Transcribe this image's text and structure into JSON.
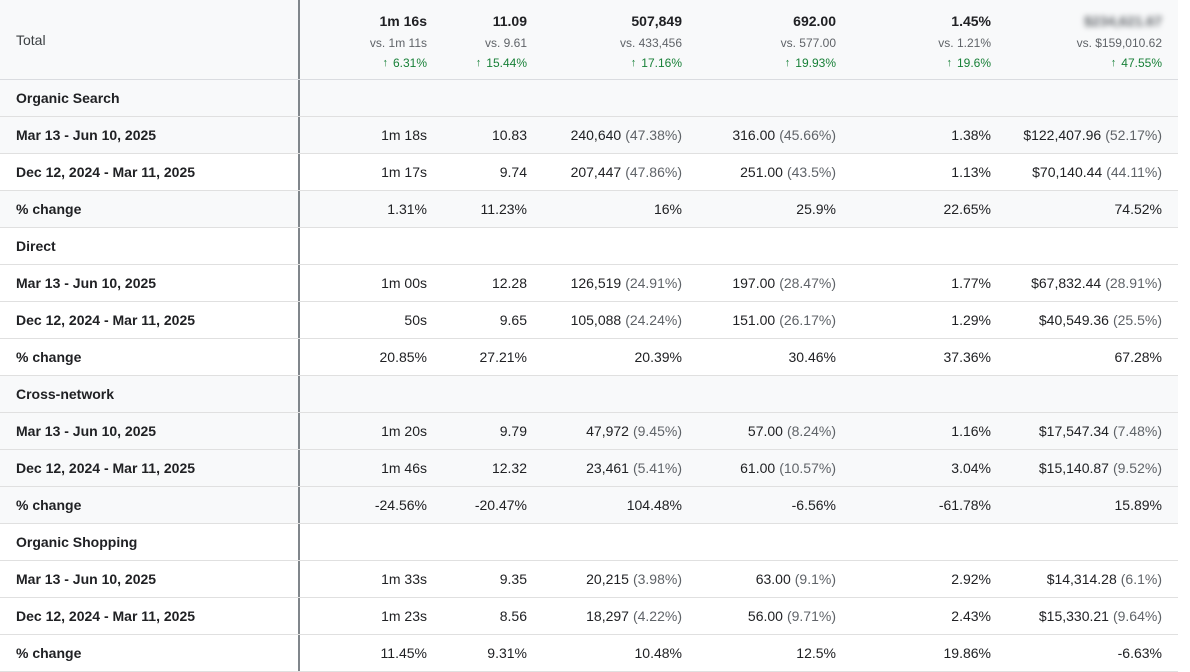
{
  "header": {
    "label": "Total",
    "columns": [
      {
        "value": "1m 16s",
        "vs": "vs. 1m 11s",
        "change": "6.31%"
      },
      {
        "value": "11.09",
        "vs": "vs. 9.61",
        "change": "15.44%"
      },
      {
        "value": "507,849",
        "vs": "vs. 433,456",
        "change": "17.16%"
      },
      {
        "value": "692.00",
        "vs": "vs. 577.00",
        "change": "19.93%"
      },
      {
        "value": "1.45%",
        "vs": "vs. 1.21%",
        "change": "19.6%"
      },
      {
        "value": "$234,621.67",
        "vs": "vs. $159,010.62",
        "change": "47.55%"
      }
    ],
    "up_arrow": "↑"
  },
  "groups": [
    {
      "name": "Organic Search",
      "rows": [
        {
          "label": "Mar 13 - Jun 10, 2025",
          "c1": "1m 18s",
          "c2": "10.83",
          "c3": "240,640",
          "c3s": "(47.38%)",
          "c4": "316.00",
          "c4s": "(45.66%)",
          "c5": "1.38%",
          "c6": "$122,407.96",
          "c6s": "(52.17%)"
        },
        {
          "label": "Dec 12, 2024 - Mar 11, 2025",
          "c1": "1m 17s",
          "c2": "9.74",
          "c3": "207,447",
          "c3s": "(47.86%)",
          "c4": "251.00",
          "c4s": "(43.5%)",
          "c5": "1.13%",
          "c6": "$70,140.44",
          "c6s": "(44.11%)"
        },
        {
          "label": "% change",
          "c1": "1.31%",
          "c2": "11.23%",
          "c3": "16%",
          "c3s": "",
          "c4": "25.9%",
          "c4s": "",
          "c5": "22.65%",
          "c6": "74.52%",
          "c6s": ""
        }
      ]
    },
    {
      "name": "Direct",
      "rows": [
        {
          "label": "Mar 13 - Jun 10, 2025",
          "c1": "1m 00s",
          "c2": "12.28",
          "c3": "126,519",
          "c3s": "(24.91%)",
          "c4": "197.00",
          "c4s": "(28.47%)",
          "c5": "1.77%",
          "c6": "$67,832.44",
          "c6s": "(28.91%)"
        },
        {
          "label": "Dec 12, 2024 - Mar 11, 2025",
          "c1": "50s",
          "c2": "9.65",
          "c3": "105,088",
          "c3s": "(24.24%)",
          "c4": "151.00",
          "c4s": "(26.17%)",
          "c5": "1.29%",
          "c6": "$40,549.36",
          "c6s": "(25.5%)"
        },
        {
          "label": "% change",
          "c1": "20.85%",
          "c2": "27.21%",
          "c3": "20.39%",
          "c3s": "",
          "c4": "30.46%",
          "c4s": "",
          "c5": "37.36%",
          "c6": "67.28%",
          "c6s": ""
        }
      ]
    },
    {
      "name": "Cross-network",
      "rows": [
        {
          "label": "Mar 13 - Jun 10, 2025",
          "c1": "1m 20s",
          "c2": "9.79",
          "c3": "47,972",
          "c3s": "(9.45%)",
          "c4": "57.00",
          "c4s": "(8.24%)",
          "c5": "1.16%",
          "c6": "$17,547.34",
          "c6s": "(7.48%)"
        },
        {
          "label": "Dec 12, 2024 - Mar 11, 2025",
          "c1": "1m 46s",
          "c2": "12.32",
          "c3": "23,461",
          "c3s": "(5.41%)",
          "c4": "61.00",
          "c4s": "(10.57%)",
          "c5": "3.04%",
          "c6": "$15,140.87",
          "c6s": "(9.52%)"
        },
        {
          "label": "% change",
          "c1": "-24.56%",
          "c2": "-20.47%",
          "c3": "104.48%",
          "c3s": "",
          "c4": "-6.56%",
          "c4s": "",
          "c5": "-61.78%",
          "c6": "15.89%",
          "c6s": ""
        }
      ]
    },
    {
      "name": "Organic Shopping",
      "rows": [
        {
          "label": "Mar 13 - Jun 10, 2025",
          "c1": "1m 33s",
          "c2": "9.35",
          "c3": "20,215",
          "c3s": "(3.98%)",
          "c4": "63.00",
          "c4s": "(9.1%)",
          "c5": "2.92%",
          "c6": "$14,314.28",
          "c6s": "(6.1%)"
        },
        {
          "label": "Dec 12, 2024 - Mar 11, 2025",
          "c1": "1m 23s",
          "c2": "8.56",
          "c3": "18,297",
          "c3s": "(4.22%)",
          "c4": "56.00",
          "c4s": "(9.71%)",
          "c5": "2.43%",
          "c6": "$15,330.21",
          "c6s": "(9.64%)"
        },
        {
          "label": "% change",
          "c1": "11.45%",
          "c2": "9.31%",
          "c3": "10.48%",
          "c3s": "",
          "c4": "12.5%",
          "c4s": "",
          "c5": "19.86%",
          "c6": "-6.63%",
          "c6s": ""
        }
      ]
    }
  ]
}
